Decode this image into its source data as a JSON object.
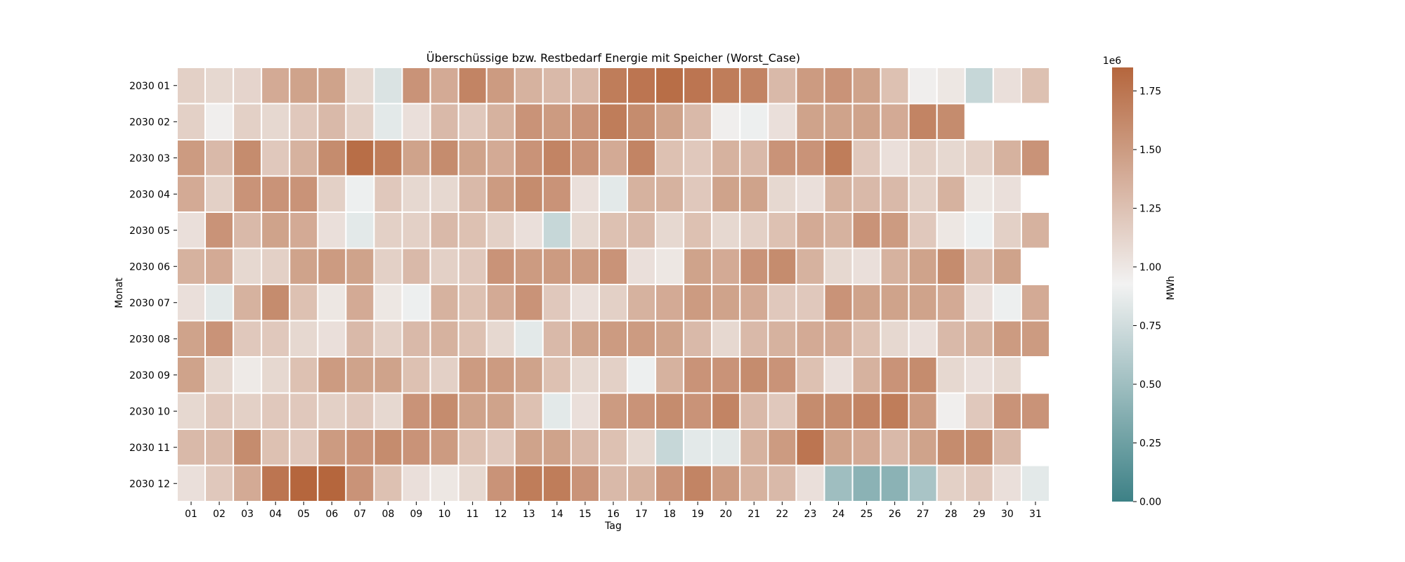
{
  "chart_data": {
    "type": "heatmap",
    "title": "Überschüssige bzw. Restbedarf Energie mit Speicher (Worst_Case)",
    "xlabel": "Tag",
    "ylabel": "Monat",
    "x_categories": [
      "01",
      "02",
      "03",
      "04",
      "05",
      "06",
      "07",
      "08",
      "09",
      "10",
      "11",
      "12",
      "13",
      "14",
      "15",
      "16",
      "17",
      "18",
      "19",
      "20",
      "21",
      "22",
      "23",
      "24",
      "25",
      "26",
      "27",
      "28",
      "29",
      "30",
      "31"
    ],
    "y_categories": [
      "2030 01",
      "2030 02",
      "2030 03",
      "2030 04",
      "2030 05",
      "2030 06",
      "2030 07",
      "2030 08",
      "2030 09",
      "2030 10",
      "2030 11",
      "2030 12"
    ],
    "values": [
      [
        1.15,
        1.1,
        1.12,
        1.4,
        1.45,
        1.45,
        1.1,
        0.8,
        1.55,
        1.4,
        1.65,
        1.5,
        1.35,
        1.3,
        1.3,
        1.7,
        1.75,
        1.8,
        1.75,
        1.7,
        1.65,
        1.3,
        1.5,
        1.55,
        1.45,
        1.25,
        0.95,
        1.0,
        0.7,
        1.05,
        1.25
      ],
      [
        1.15,
        0.95,
        1.15,
        1.1,
        1.2,
        1.3,
        1.15,
        0.85,
        1.05,
        1.3,
        1.2,
        1.35,
        1.55,
        1.5,
        1.55,
        1.7,
        1.6,
        1.45,
        1.3,
        0.95,
        0.9,
        1.05,
        1.45,
        1.45,
        1.45,
        1.4,
        1.65,
        1.6,
        null,
        null,
        null
      ],
      [
        1.5,
        1.3,
        1.6,
        1.2,
        1.35,
        1.6,
        1.8,
        1.7,
        1.45,
        1.6,
        1.45,
        1.4,
        1.55,
        1.65,
        1.55,
        1.4,
        1.65,
        1.25,
        1.2,
        1.35,
        1.3,
        1.55,
        1.55,
        1.7,
        1.2,
        1.05,
        1.15,
        1.1,
        1.15,
        1.35,
        1.55
      ],
      [
        1.4,
        1.15,
        1.55,
        1.55,
        1.55,
        1.15,
        0.9,
        1.2,
        1.1,
        1.1,
        1.3,
        1.5,
        1.6,
        1.55,
        1.05,
        0.85,
        1.35,
        1.35,
        1.2,
        1.45,
        1.45,
        1.1,
        1.05,
        1.35,
        1.3,
        1.3,
        1.15,
        1.35,
        1.0,
        1.05,
        null
      ],
      [
        1.05,
        1.55,
        1.3,
        1.45,
        1.4,
        1.05,
        0.85,
        1.15,
        1.15,
        1.3,
        1.25,
        1.15,
        1.05,
        0.7,
        1.1,
        1.25,
        1.3,
        1.1,
        1.25,
        1.1,
        1.15,
        1.25,
        1.4,
        1.35,
        1.55,
        1.5,
        1.2,
        1.0,
        0.9,
        1.15,
        1.35
      ],
      [
        1.35,
        1.4,
        1.1,
        1.15,
        1.45,
        1.5,
        1.45,
        1.15,
        1.3,
        1.15,
        1.2,
        1.55,
        1.5,
        1.5,
        1.5,
        1.55,
        1.05,
        1.0,
        1.45,
        1.4,
        1.55,
        1.6,
        1.35,
        1.1,
        1.05,
        1.35,
        1.45,
        1.6,
        1.3,
        1.45,
        null
      ],
      [
        1.05,
        0.85,
        1.35,
        1.6,
        1.25,
        1.0,
        1.4,
        1.0,
        0.9,
        1.35,
        1.25,
        1.4,
        1.55,
        1.2,
        1.05,
        1.15,
        1.35,
        1.4,
        1.5,
        1.45,
        1.4,
        1.2,
        1.2,
        1.55,
        1.45,
        1.45,
        1.45,
        1.4,
        1.05,
        0.9,
        1.4
      ],
      [
        1.45,
        1.55,
        1.2,
        1.2,
        1.1,
        1.05,
        1.3,
        1.15,
        1.3,
        1.35,
        1.25,
        1.1,
        0.85,
        1.3,
        1.45,
        1.5,
        1.5,
        1.45,
        1.3,
        1.1,
        1.3,
        1.35,
        1.4,
        1.4,
        1.25,
        1.1,
        1.05,
        1.3,
        1.35,
        1.5,
        1.5
      ],
      [
        1.45,
        1.1,
        0.98,
        1.1,
        1.25,
        1.5,
        1.45,
        1.45,
        1.25,
        1.15,
        1.5,
        1.5,
        1.45,
        1.25,
        1.1,
        1.15,
        0.9,
        1.35,
        1.55,
        1.55,
        1.6,
        1.55,
        1.25,
        1.05,
        1.35,
        1.55,
        1.6,
        1.1,
        1.05,
        1.1,
        null
      ],
      [
        1.1,
        1.2,
        1.15,
        1.2,
        1.2,
        1.15,
        1.2,
        1.1,
        1.55,
        1.6,
        1.45,
        1.45,
        1.25,
        0.85,
        1.05,
        1.5,
        1.55,
        1.6,
        1.55,
        1.65,
        1.3,
        1.2,
        1.6,
        1.6,
        1.65,
        1.7,
        1.5,
        0.95,
        1.2,
        1.55,
        1.55
      ],
      [
        1.3,
        1.3,
        1.6,
        1.25,
        1.2,
        1.5,
        1.55,
        1.6,
        1.55,
        1.5,
        1.25,
        1.2,
        1.45,
        1.45,
        1.3,
        1.25,
        1.1,
        0.7,
        0.85,
        0.85,
        1.35,
        1.5,
        1.75,
        1.45,
        1.4,
        1.3,
        1.45,
        1.6,
        1.6,
        1.3,
        null
      ],
      [
        1.05,
        1.2,
        1.4,
        1.75,
        1.85,
        1.85,
        1.55,
        1.25,
        1.05,
        1.0,
        1.1,
        1.55,
        1.7,
        1.7,
        1.55,
        1.3,
        1.35,
        1.55,
        1.65,
        1.5,
        1.35,
        1.3,
        1.05,
        0.5,
        0.4,
        0.4,
        0.55,
        1.15,
        1.2,
        1.05,
        0.85
      ]
    ],
    "vmin": 0,
    "vmax": 1.85,
    "colorbar": {
      "label": "MWh",
      "offset_label": "1e6",
      "ticks": [
        0.0,
        0.25,
        0.5,
        0.75,
        1.0,
        1.25,
        1.5,
        1.75
      ],
      "tick_labels": [
        "0.00",
        "0.25",
        "0.50",
        "0.75",
        "1.00",
        "1.25",
        "1.50",
        "1.75"
      ]
    },
    "colormap": [
      "#3d8186",
      "#f2f2f2",
      "#b5663d"
    ]
  }
}
